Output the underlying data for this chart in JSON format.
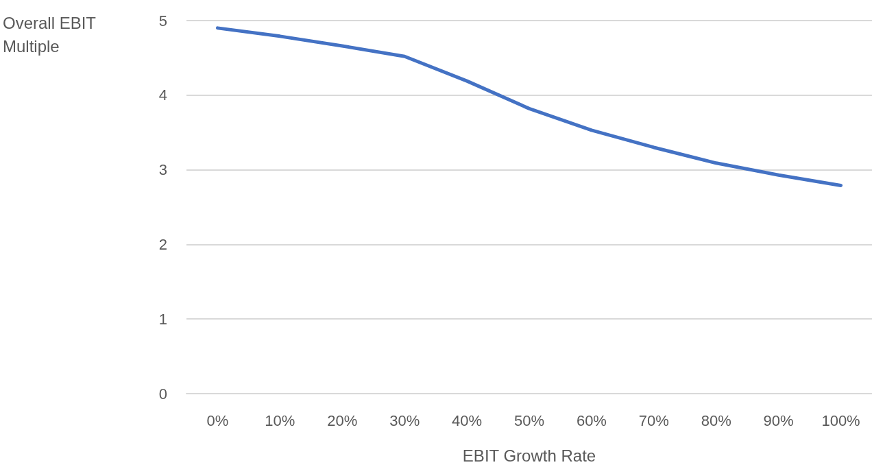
{
  "chart_data": {
    "type": "line",
    "xlabel": "EBIT Growth Rate",
    "ylabel": "Overall EBIT Multiple",
    "categories": [
      "0%",
      "10%",
      "20%",
      "30%",
      "40%",
      "50%",
      "60%",
      "70%",
      "80%",
      "90%",
      "100%"
    ],
    "series": [
      {
        "color": "#4472c4",
        "values": [
          4.9,
          4.79,
          4.66,
          4.52,
          4.19,
          3.82,
          3.53,
          3.3,
          3.09,
          2.93,
          2.79
        ]
      }
    ],
    "ylim": [
      0,
      5
    ],
    "yticks": [
      0,
      1,
      2,
      3,
      4,
      5
    ],
    "grid": "y",
    "marker": "none",
    "line_style": "solid"
  }
}
